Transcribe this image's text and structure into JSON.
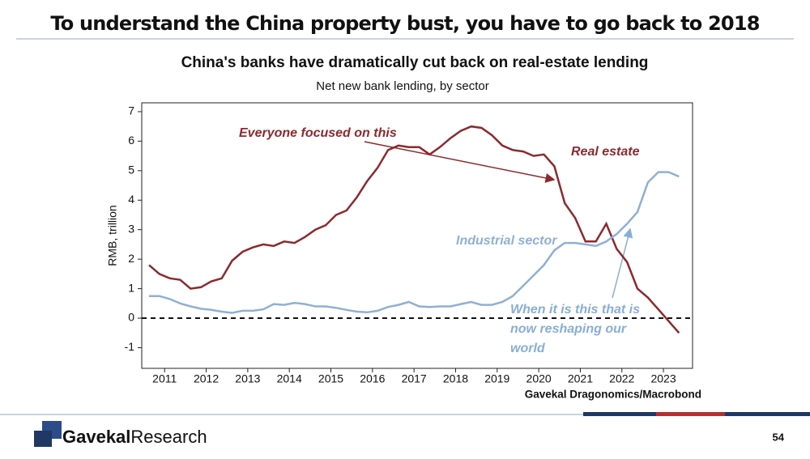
{
  "header": "To understand the China property bust, you have to go back to 2018",
  "footer": {
    "logo_bold": "Gavekal",
    "logo_light": "Research",
    "page": "54"
  },
  "chart_data": {
    "type": "line",
    "title": "China's banks have dramatically cut back on real-estate lending",
    "subtitle": "Net new bank lending, by sector",
    "ylabel": "RMB, trillion",
    "source": "Gavekal Dragonomics/Macrobond",
    "x": [
      2011.125,
      2011.375,
      2011.625,
      2011.875,
      2012.125,
      2012.375,
      2012.625,
      2012.875,
      2013.125,
      2013.375,
      2013.625,
      2013.875,
      2014.125,
      2014.375,
      2014.625,
      2014.875,
      2015.125,
      2015.375,
      2015.625,
      2015.875,
      2016.125,
      2016.375,
      2016.625,
      2016.875,
      2017.125,
      2017.375,
      2017.625,
      2017.875,
      2018.125,
      2018.375,
      2018.625,
      2018.875,
      2019.125,
      2019.375,
      2019.625,
      2019.875,
      2020.125,
      2020.375,
      2020.625,
      2020.875,
      2021.125,
      2021.375,
      2021.625,
      2021.875,
      2022.125,
      2022.375,
      2022.625,
      2022.875,
      2023.125,
      2023.375,
      2023.625,
      2023.875
    ],
    "series": [
      {
        "name": "Real estate",
        "color": "#8b2a2e",
        "values": [
          1.8,
          1.5,
          1.35,
          1.3,
          1.0,
          1.05,
          1.25,
          1.35,
          1.95,
          2.25,
          2.4,
          2.5,
          2.45,
          2.6,
          2.55,
          2.75,
          3.0,
          3.15,
          3.5,
          3.65,
          4.1,
          4.65,
          5.1,
          5.7,
          5.85,
          5.8,
          5.8,
          5.55,
          5.8,
          6.1,
          6.35,
          6.5,
          6.45,
          6.2,
          5.85,
          5.7,
          5.65,
          5.5,
          5.55,
          5.15,
          3.9,
          3.4,
          2.6,
          2.6,
          3.2,
          2.35,
          1.9,
          1.0,
          0.7,
          0.3,
          -0.1,
          -0.5
        ]
      },
      {
        "name": "Industrial sector",
        "color": "#8fb0d3",
        "values": [
          0.75,
          0.75,
          0.65,
          0.5,
          0.4,
          0.32,
          0.28,
          0.22,
          0.18,
          0.25,
          0.25,
          0.3,
          0.48,
          0.45,
          0.52,
          0.48,
          0.4,
          0.4,
          0.35,
          0.28,
          0.22,
          0.2,
          0.25,
          0.38,
          0.45,
          0.55,
          0.4,
          0.38,
          0.4,
          0.4,
          0.48,
          0.55,
          0.45,
          0.45,
          0.55,
          0.75,
          1.1,
          1.45,
          1.8,
          2.3,
          2.55,
          2.55,
          2.5,
          2.45,
          2.6,
          2.85,
          3.2,
          3.6,
          4.6,
          4.95,
          4.95,
          4.8
        ]
      }
    ],
    "annotations": [
      {
        "lines": [
          "Everyone focused on this"
        ],
        "color": "#8b2a2e"
      },
      {
        "lines": [
          "When it is this that is",
          "now reshaping our",
          "world"
        ],
        "color": "#8aaed3"
      }
    ],
    "reference_line": 0,
    "xlim": [
      2010.95,
      2024.2
    ],
    "xticks": [
      {
        "value": 2011.5,
        "label": "2011"
      },
      {
        "value": 2012.5,
        "label": "2012"
      },
      {
        "value": 2013.5,
        "label": "2013"
      },
      {
        "value": 2014.5,
        "label": "2014"
      },
      {
        "value": 2015.5,
        "label": "2015"
      },
      {
        "value": 2016.5,
        "label": "2016"
      },
      {
        "value": 2017.5,
        "label": "2017"
      },
      {
        "value": 2018.5,
        "label": "2018"
      },
      {
        "value": 2019.5,
        "label": "2019"
      },
      {
        "value": 2020.5,
        "label": "2020"
      },
      {
        "value": 2021.5,
        "label": "2021"
      },
      {
        "value": 2022.5,
        "label": "2022"
      },
      {
        "value": 2023.5,
        "label": "2023"
      }
    ],
    "ylim": [
      -1.7,
      7.3
    ],
    "yticks": [
      -1,
      0,
      1,
      2,
      3,
      4,
      5,
      6,
      7
    ]
  }
}
